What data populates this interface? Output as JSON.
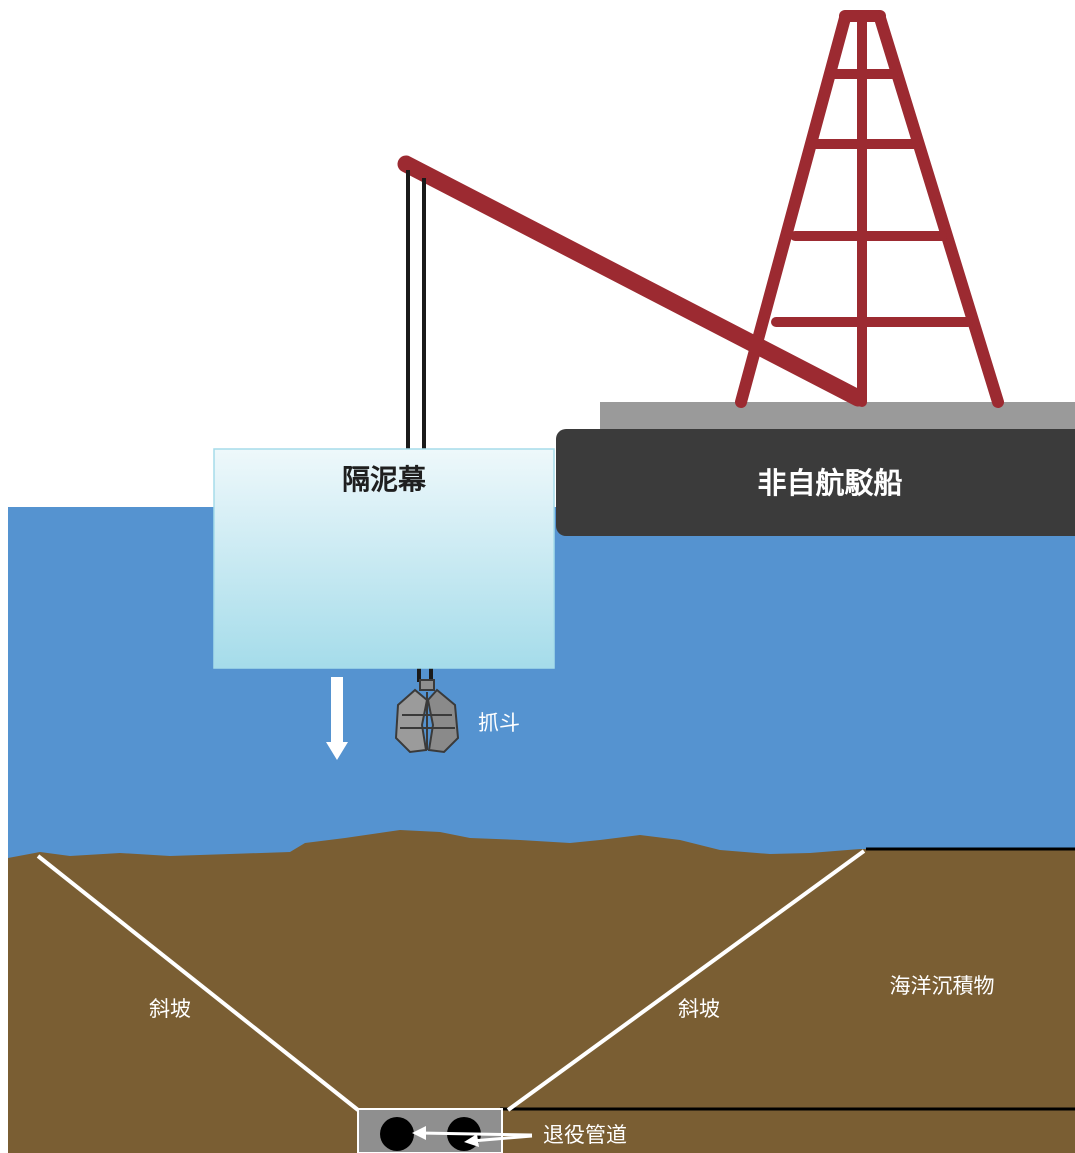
{
  "labels": {
    "silt_curtain": "隔泥幕",
    "barge": "非自航駁船",
    "grab": "抓斗",
    "slope_left": "斜坡",
    "slope_right": "斜坡",
    "marine_sediment": "海洋沉積物",
    "pipeline": "退役管道"
  },
  "colors": {
    "water": "#5593d0",
    "seabed": "#7a5e33",
    "crane_red": "#9c2a31",
    "barge_hull": "#3b3b3b",
    "barge_deck": "#9a9a9a",
    "curtain_top": "#eef8fb",
    "curtain_bottom": "#a5dcea",
    "grab_grey": "#8e8e8e",
    "slope_line": "#ffffff",
    "pipe": "#000000",
    "pipe_box": "#8f8f8f"
  },
  "icons": {
    "descent_arrow": "down-arrow-icon",
    "grab_bucket": "grab-bucket-icon",
    "pipe_arrows": "left-arrow-icon"
  }
}
